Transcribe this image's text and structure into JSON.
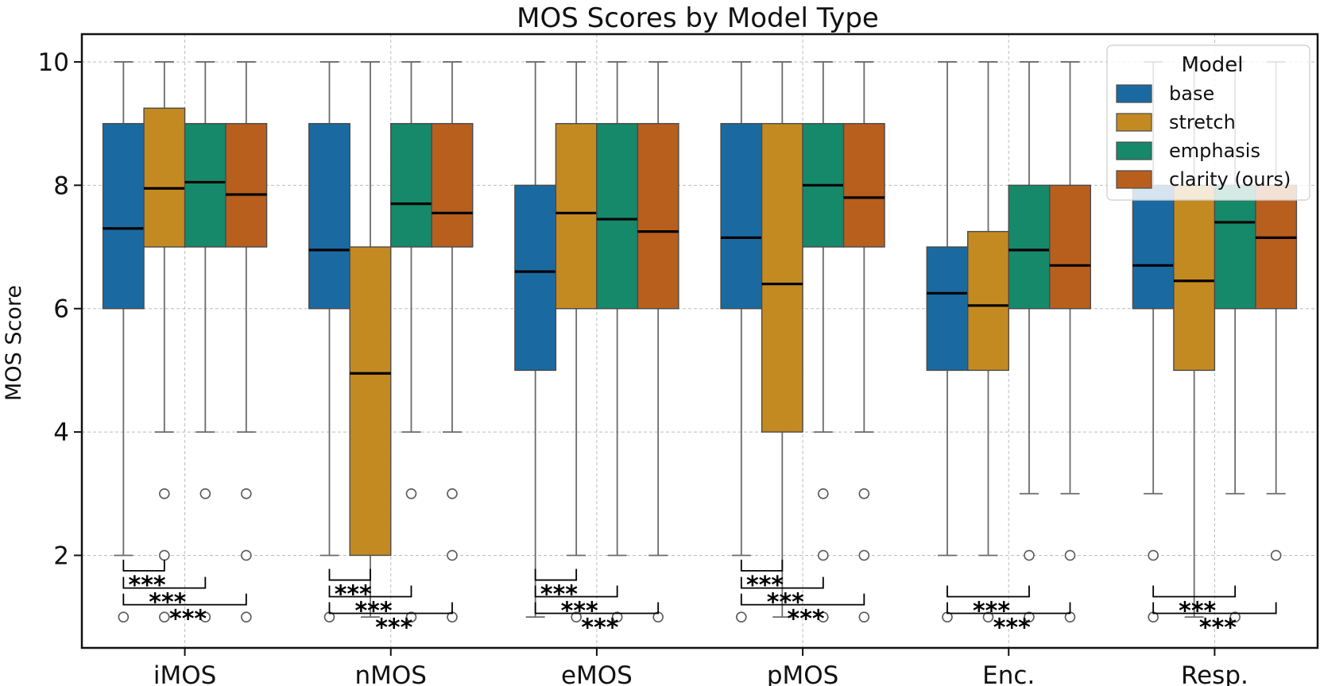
{
  "chart_data": {
    "type": "box",
    "title": "MOS Scores by Model Type",
    "xlabel": "",
    "ylabel": "MOS Score",
    "ylim": [
      0.5,
      10.45
    ],
    "yticks": [
      2,
      4,
      6,
      8,
      10
    ],
    "grid": true,
    "legend": {
      "title": "Model",
      "placement": "top-right"
    },
    "categories": [
      "iMOS",
      "nMOS",
      "eMOS",
      "pMOS",
      "Enc.",
      "Resp."
    ],
    "series": [
      {
        "name": "base",
        "color": "#1a6aa1",
        "boxes": [
          {
            "q1": 6,
            "q3": 9,
            "whislo": 2,
            "whishi": 10,
            "mean": 7.3,
            "fliers": [
              1
            ]
          },
          {
            "q1": 6,
            "q3": 9,
            "whislo": 2,
            "whishi": 10,
            "mean": 6.95,
            "fliers": [
              1
            ]
          },
          {
            "q1": 5,
            "q3": 8,
            "whislo": 1,
            "whishi": 10,
            "mean": 6.6,
            "fliers": []
          },
          {
            "q1": 6,
            "q3": 9,
            "whislo": 2,
            "whishi": 10,
            "mean": 7.15,
            "fliers": [
              1
            ]
          },
          {
            "q1": 5,
            "q3": 7,
            "whislo": 2,
            "whishi": 10,
            "mean": 6.25,
            "fliers": [
              1
            ]
          },
          {
            "q1": 6,
            "q3": 8,
            "whislo": 3,
            "whishi": 10,
            "mean": 6.7,
            "fliers": [
              2,
              1
            ]
          }
        ]
      },
      {
        "name": "stretch",
        "color": "#c48a22",
        "boxes": [
          {
            "q1": 7,
            "q3": 9.25,
            "whislo": 4,
            "whishi": 10,
            "mean": 7.95,
            "fliers": [
              3,
              2,
              1
            ]
          },
          {
            "q1": 2,
            "q3": 7,
            "whislo": 1,
            "whishi": 10,
            "mean": 4.95,
            "fliers": []
          },
          {
            "q1": 6,
            "q3": 9,
            "whislo": 2,
            "whishi": 10,
            "mean": 7.55,
            "fliers": [
              1
            ]
          },
          {
            "q1": 4,
            "q3": 9,
            "whislo": 1,
            "whishi": 10,
            "mean": 6.4,
            "fliers": []
          },
          {
            "q1": 5,
            "q3": 7.25,
            "whislo": 2,
            "whishi": 10,
            "mean": 6.05,
            "fliers": [
              1
            ]
          },
          {
            "q1": 5,
            "q3": 8,
            "whislo": 1,
            "whishi": 10,
            "mean": 6.45,
            "fliers": []
          }
        ]
      },
      {
        "name": "emphasis",
        "color": "#16896a",
        "boxes": [
          {
            "q1": 7,
            "q3": 9,
            "whislo": 4,
            "whishi": 10,
            "mean": 8.05,
            "fliers": [
              3,
              1
            ]
          },
          {
            "q1": 7,
            "q3": 9,
            "whislo": 4,
            "whishi": 10,
            "mean": 7.7,
            "fliers": [
              3,
              1
            ]
          },
          {
            "q1": 6,
            "q3": 9,
            "whislo": 2,
            "whishi": 10,
            "mean": 7.45,
            "fliers": [
              1
            ]
          },
          {
            "q1": 7,
            "q3": 9,
            "whislo": 4,
            "whishi": 10,
            "mean": 8.0,
            "fliers": [
              3,
              2,
              1
            ]
          },
          {
            "q1": 6,
            "q3": 8,
            "whislo": 3,
            "whishi": 10,
            "mean": 6.95,
            "fliers": [
              2,
              1
            ]
          },
          {
            "q1": 6,
            "q3": 8,
            "whislo": 3,
            "whishi": 10,
            "mean": 7.4,
            "fliers": [
              1
            ]
          }
        ]
      },
      {
        "name": "clarity (ours)",
        "color": "#b85f1e",
        "boxes": [
          {
            "q1": 7,
            "q3": 9,
            "whislo": 4,
            "whishi": 10,
            "mean": 7.85,
            "fliers": [
              3,
              2,
              1
            ]
          },
          {
            "q1": 7,
            "q3": 9,
            "whislo": 4,
            "whishi": 10,
            "mean": 7.55,
            "fliers": [
              3,
              2,
              1
            ]
          },
          {
            "q1": 6,
            "q3": 9,
            "whislo": 2,
            "whishi": 10,
            "mean": 7.25,
            "fliers": [
              1
            ]
          },
          {
            "q1": 7,
            "q3": 9,
            "whislo": 4,
            "whishi": 10,
            "mean": 7.8,
            "fliers": [
              3,
              2,
              1
            ]
          },
          {
            "q1": 6,
            "q3": 8,
            "whislo": 3,
            "whishi": 10,
            "mean": 6.7,
            "fliers": [
              2,
              1
            ]
          },
          {
            "q1": 6,
            "q3": 8,
            "whislo": 3,
            "whishi": 10,
            "mean": 7.15,
            "fliers": [
              2
            ]
          }
        ]
      }
    ],
    "annotations": [
      {
        "category": 0,
        "from": 0,
        "to": 1,
        "y": 1.75,
        "label": "***"
      },
      {
        "category": 0,
        "from": 0,
        "to": 2,
        "y": 1.47,
        "label": "***"
      },
      {
        "category": 0,
        "from": 0,
        "to": 3,
        "y": 1.2,
        "label": "***"
      },
      {
        "category": 1,
        "from": 0,
        "to": 1,
        "y": 1.6,
        "label": "***"
      },
      {
        "category": 1,
        "from": 0,
        "to": 2,
        "y": 1.33,
        "label": "***"
      },
      {
        "category": 1,
        "from": 0,
        "to": 3,
        "y": 1.06,
        "label": "***"
      },
      {
        "category": 2,
        "from": 0,
        "to": 1,
        "y": 1.6,
        "label": "***"
      },
      {
        "category": 2,
        "from": 0,
        "to": 2,
        "y": 1.33,
        "label": "***"
      },
      {
        "category": 2,
        "from": 0,
        "to": 3,
        "y": 1.06,
        "label": "***"
      },
      {
        "category": 3,
        "from": 0,
        "to": 1,
        "y": 1.75,
        "label": "***"
      },
      {
        "category": 3,
        "from": 0,
        "to": 2,
        "y": 1.47,
        "label": "***"
      },
      {
        "category": 3,
        "from": 0,
        "to": 3,
        "y": 1.2,
        "label": "***"
      },
      {
        "category": 4,
        "from": 0,
        "to": 2,
        "y": 1.33,
        "label": "***"
      },
      {
        "category": 4,
        "from": 0,
        "to": 3,
        "y": 1.06,
        "label": "***"
      },
      {
        "category": 5,
        "from": 0,
        "to": 2,
        "y": 1.33,
        "label": "***"
      },
      {
        "category": 5,
        "from": 0,
        "to": 3,
        "y": 1.06,
        "label": "***"
      }
    ]
  }
}
